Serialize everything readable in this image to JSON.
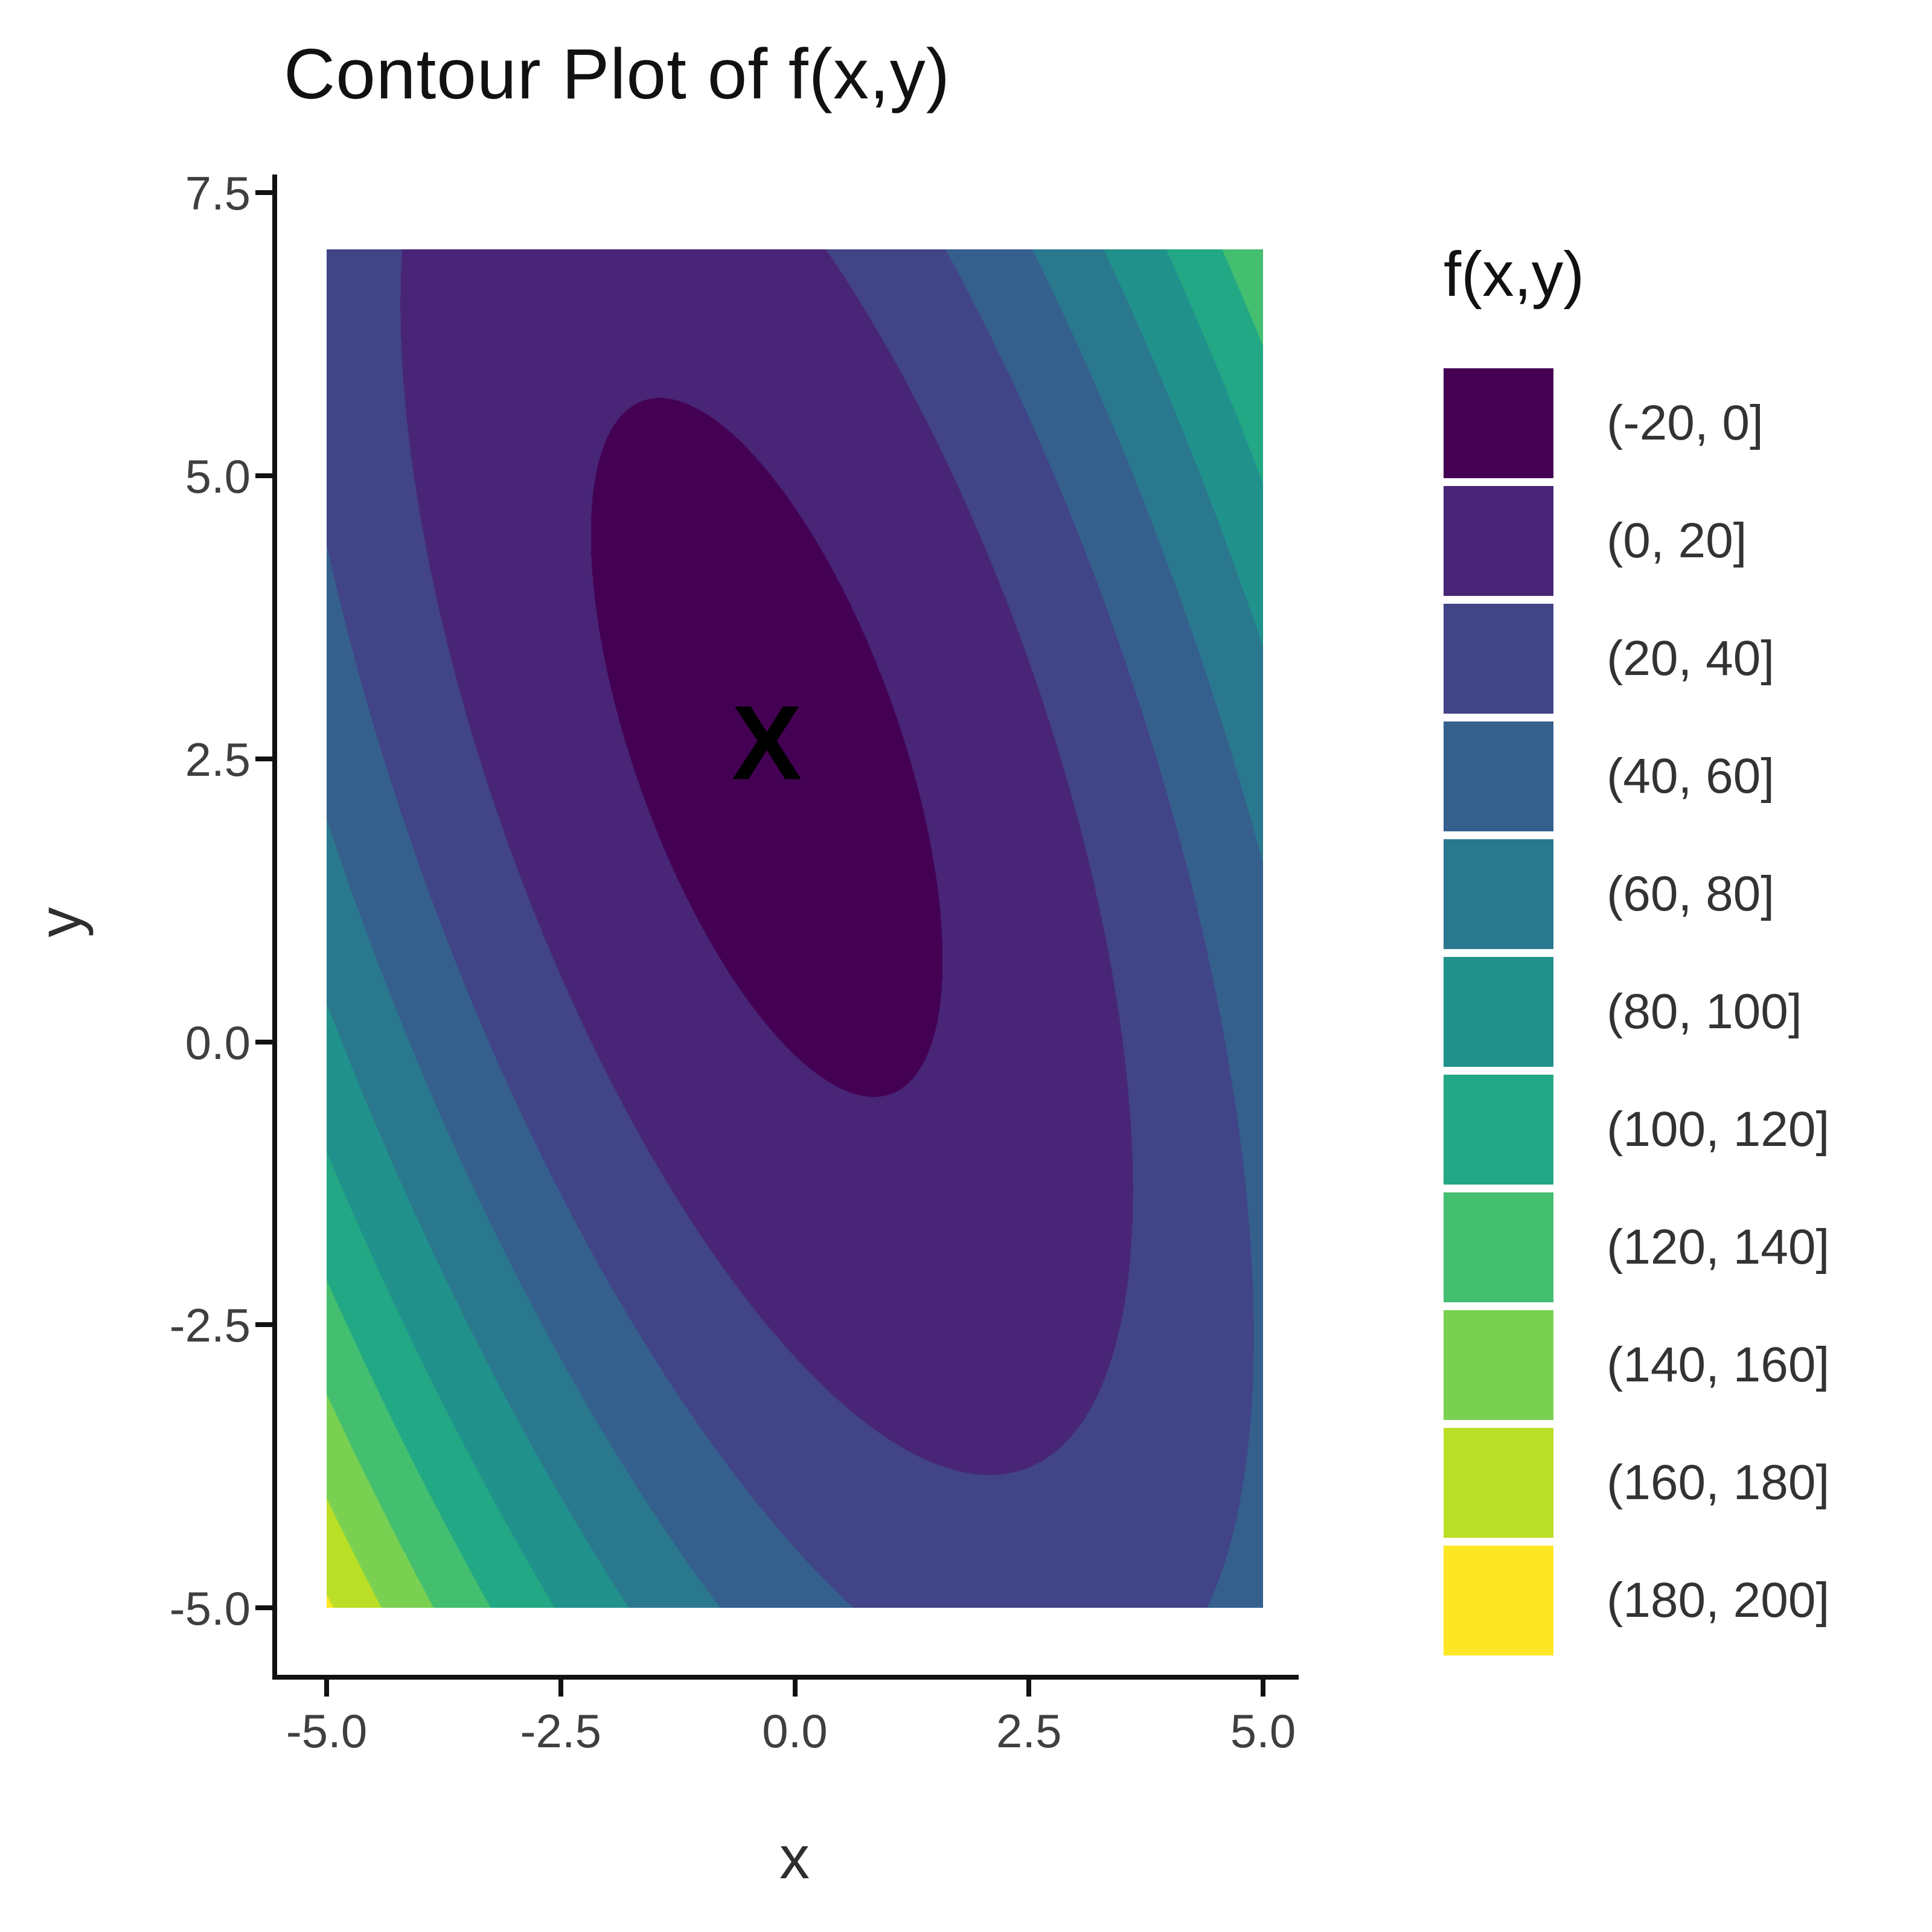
{
  "chart_data": {
    "type": "contour",
    "title": "Contour Plot of f(x,y)",
    "xlabel": "x",
    "ylabel": "y",
    "legend_title": "f(x,y)",
    "x_domain": [
      -5,
      5
    ],
    "y_domain": [
      -5,
      7
    ],
    "x_ticks": [
      -5.0,
      -2.5,
      0.0,
      2.5,
      5.0
    ],
    "y_ticks": [
      -5.0,
      -2.5,
      0.0,
      2.5,
      5.0,
      7.5
    ],
    "grid": false,
    "legend_position": "right",
    "bins": [
      {
        "label": "(-20, 0]",
        "min": -20,
        "max": 0,
        "color": "#440154"
      },
      {
        "label": "(0, 20]",
        "min": 0,
        "max": 20,
        "color": "#482576"
      },
      {
        "label": "(20, 40]",
        "min": 20,
        "max": 40,
        "color": "#414487"
      },
      {
        "label": "(40, 60]",
        "min": 40,
        "max": 60,
        "color": "#35608D"
      },
      {
        "label": "(60, 80]",
        "min": 60,
        "max": 80,
        "color": "#2A788E"
      },
      {
        "label": "(80, 100]",
        "min": 80,
        "max": 100,
        "color": "#21918C"
      },
      {
        "label": "(100, 120]",
        "min": 100,
        "max": 120,
        "color": "#22A884"
      },
      {
        "label": "(120, 140]",
        "min": 120,
        "max": 140,
        "color": "#44BF70"
      },
      {
        "label": "(140, 160]",
        "min": 140,
        "max": 160,
        "color": "#7AD151"
      },
      {
        "label": "(160, 180]",
        "min": 160,
        "max": 180,
        "color": "#BBDF27"
      },
      {
        "label": "(180, 200]",
        "min": 180,
        "max": 200,
        "color": "#FDE725"
      }
    ],
    "bin_width": 20,
    "bin_start": -20,
    "surface": {
      "type": "quadratic",
      "a": 2.7,
      "b": 1.0,
      "c": 2.0,
      "x0": -0.3,
      "y0": 2.6,
      "f0": -6,
      "min_value": -6,
      "min_at": [
        -0.3,
        2.6
      ]
    },
    "marker": {
      "symbol": "X",
      "x": -0.3,
      "y": 2.6
    }
  }
}
